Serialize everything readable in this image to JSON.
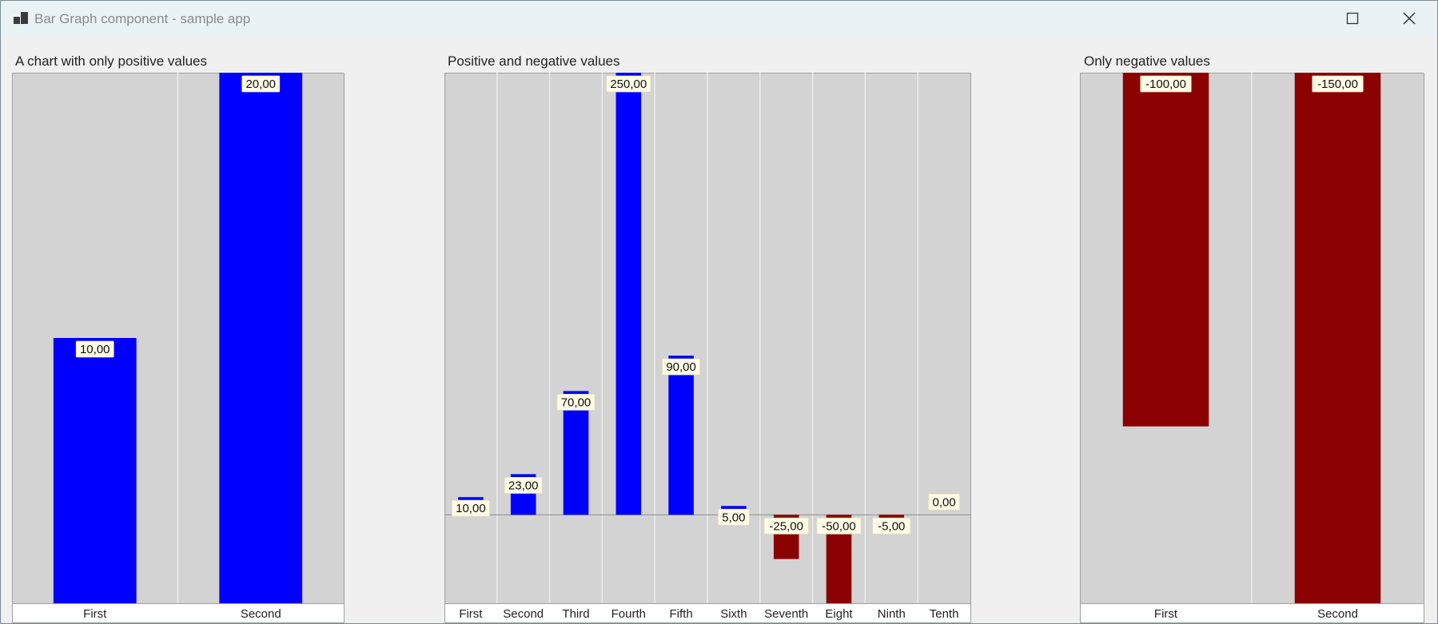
{
  "window": {
    "title": "Bar Graph component - sample app",
    "icons": {
      "app": "app-icon",
      "maximize": "maximize-icon",
      "close": "close-icon"
    }
  },
  "colors": {
    "positive": "#0000ff",
    "negative": "#8b0000",
    "plot_background": "#d3d3d3",
    "label_background": "#fffbe6"
  },
  "charts": [
    {
      "title": "A chart with only positive values"
    },
    {
      "title": "Positive and negative values"
    },
    {
      "title": "Only negative values"
    }
  ],
  "chart_data": [
    {
      "type": "bar",
      "title": "A chart with only positive values",
      "categories": [
        "First",
        "Second"
      ],
      "values": [
        10,
        20
      ],
      "value_labels": [
        "10,00",
        "20,00"
      ],
      "ylim": [
        0,
        20
      ]
    },
    {
      "type": "bar",
      "title": "Positive and negative values",
      "categories": [
        "First",
        "Second",
        "Third",
        "Fourth",
        "Fifth",
        "Sixth",
        "Seventh",
        "Eight",
        "Ninth",
        "Tenth"
      ],
      "values": [
        10,
        23,
        70,
        250,
        90,
        5,
        -25,
        -50,
        -5,
        0
      ],
      "value_labels": [
        "10,00",
        "23,00",
        "70,00",
        "250,00",
        "90,00",
        "5,00",
        "-25,00",
        "-50,00",
        "-5,00",
        "0,00"
      ],
      "ylim": [
        -50,
        250
      ]
    },
    {
      "type": "bar",
      "title": "Only negative values",
      "categories": [
        "First",
        "Second"
      ],
      "values": [
        -100,
        -150
      ],
      "value_labels": [
        "-100,00",
        "-150,00"
      ],
      "ylim": [
        -150,
        0
      ]
    }
  ]
}
